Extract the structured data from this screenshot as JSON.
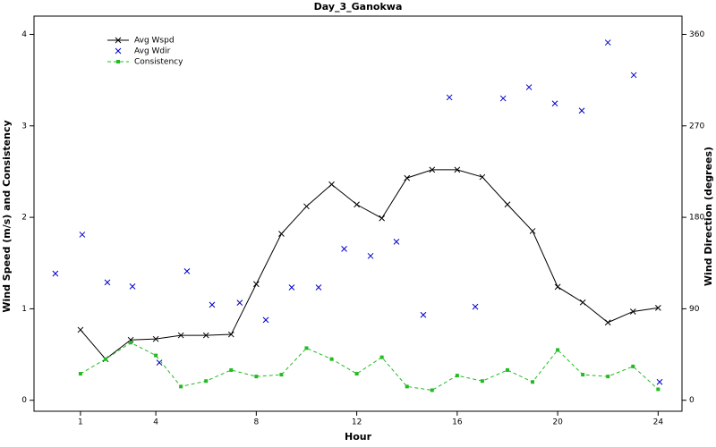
{
  "chart_data": {
    "type": "line",
    "title": "Day_3_Ganokwa",
    "x_label": "Hour",
    "y_label": "Wind Speed (m/s) and Consistency",
    "y2_label": "Wind Direction (degrees)",
    "xlim": [
      -0.85,
      24.95
    ],
    "xticks": [
      1,
      4,
      8,
      12,
      16,
      20,
      24
    ],
    "ylim": [
      -0.12,
      4.2
    ],
    "yticks": [
      0,
      1,
      2,
      3,
      4
    ],
    "y2lim": [
      -10.8,
      378
    ],
    "y2ticks": [
      0,
      90,
      180,
      270,
      360
    ],
    "legend": "top-left",
    "series": [
      {
        "name": "Avg Wspd",
        "color": "#000000",
        "style": "line",
        "marker": "x",
        "dash": false,
        "x": [
          1,
          2,
          3,
          4,
          5,
          6,
          7,
          8,
          9,
          10,
          11,
          12,
          13,
          14,
          15,
          16,
          17,
          18,
          19,
          20,
          21,
          22,
          23,
          24
        ],
        "values": [
          0.77,
          0.45,
          0.66,
          0.67,
          0.71,
          0.71,
          0.72,
          1.27,
          1.82,
          2.12,
          2.36,
          2.14,
          1.99,
          2.43,
          2.52,
          2.52,
          2.44,
          2.14,
          1.85,
          1.24,
          1.07,
          0.85,
          0.97,
          1.01
        ]
      },
      {
        "name": "Avg Wdir",
        "color": "#0000cc",
        "style": "points",
        "marker": "x",
        "dash": false,
        "axis": "y2",
        "x": [
          0,
          1.07,
          2.07,
          3.07,
          4.14,
          5.24,
          6.24,
          7.34,
          8.38,
          9.41,
          10.48,
          11.5,
          12.55,
          13.58,
          14.65,
          15.69,
          16.72,
          17.83,
          18.86,
          19.89,
          20.96,
          22.0,
          23.03,
          24.06
        ],
        "values": [
          124.7,
          163,
          116,
          112,
          37,
          127,
          94,
          96,
          79,
          111,
          111,
          149,
          142,
          156,
          84,
          298,
          92,
          297,
          308,
          292,
          285,
          352,
          320,
          18
        ]
      },
      {
        "name": "Consistency",
        "color": "#22bb22",
        "style": "line",
        "marker": "square",
        "dash": true,
        "x": [
          1,
          2,
          3,
          4,
          5,
          6,
          7,
          8,
          9,
          10,
          11,
          12,
          13,
          14,
          15,
          16,
          17,
          18,
          19,
          20,
          21,
          22,
          23,
          24
        ],
        "values": [
          0.29,
          0.45,
          0.63,
          0.49,
          0.15,
          0.21,
          0.33,
          0.26,
          0.28,
          0.57,
          0.45,
          0.29,
          0.47,
          0.15,
          0.11,
          0.27,
          0.21,
          0.33,
          0.2,
          0.55,
          0.28,
          0.26,
          0.37,
          0.12
        ]
      }
    ]
  }
}
